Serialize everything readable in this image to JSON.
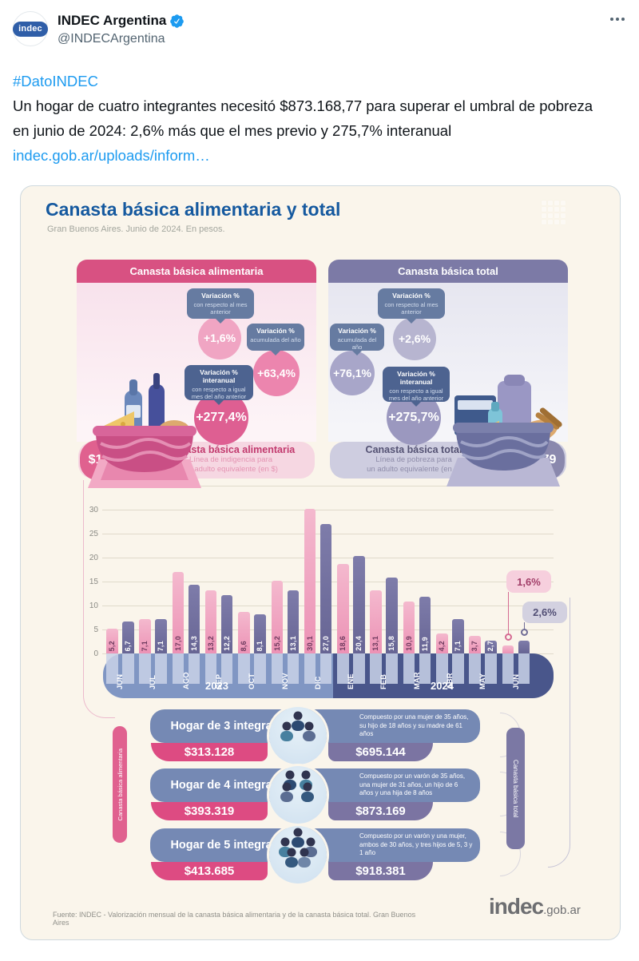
{
  "colors": {
    "link": "#1d9bf0",
    "title_blue": "#15599f",
    "pink": "#d85182",
    "purple": "#7c7aa6",
    "band_2023": "#8096c3",
    "band_2024": "#49568b"
  },
  "tweet": {
    "name": "INDEC Argentina",
    "handle": "@INDECArgentina",
    "avatar_text": "indec",
    "hashtag": "#DatoINDEC",
    "body": "Un hogar de cuatro integrantes necesitó $873.168,77 para superar el umbral de pobreza en junio de 2024: 2,6% más que el mes previo y 275,7% interanual ",
    "link_text": "indec.gob.ar/uploads/inform…"
  },
  "infographic": {
    "title": "Canasta básica alimentaria y total",
    "subtitle": "Gran Buenos Aires. Junio de 2024. En pesos.",
    "panels": [
      {
        "header": "Canasta básica alimentaria",
        "callouts": [
          {
            "title": "Variación %",
            "subtitle": "con respecto al mes anterior",
            "value": "+1,6%"
          },
          {
            "title": "Variación %",
            "subtitle": "acumulada del año",
            "value": "+63,4%"
          },
          {
            "title": "Variación % interanual",
            "subtitle": "con respecto a igual mes del año anterior",
            "value": "+277,4%"
          }
        ],
        "amount": "$127.288",
        "footer_title": "Canasta básica alimentaria",
        "footer_line1": "Línea de indigencia para",
        "footer_line2": "un adulto equivalente (en $)"
      },
      {
        "header": "Canasta básica total",
        "callouts": [
          {
            "title": "Variación %",
            "subtitle": "con respecto al mes anterior",
            "value": "+2,6%"
          },
          {
            "title": "Variación %",
            "subtitle": "acumulada del año",
            "value": "+76,1%"
          },
          {
            "title": "Variación % interanual",
            "subtitle": "con respecto a igual mes del año anterior",
            "value": "+275,7%"
          }
        ],
        "amount": "$282.579",
        "footer_title": "Canasta básica total",
        "footer_line1": "Línea de pobreza para",
        "footer_line2": "un adulto equivalente (en $)"
      }
    ],
    "ribbon_left": "Canasta básica alimentaria",
    "ribbon_right": "Canasta básica total",
    "households": [
      {
        "title": "Hogar de 3 integrantes",
        "members": 3,
        "amount_cba": "$313.128",
        "description": "Compuesto por una mujer de 35 años, su hijo de 18 años y su madre de 61 años",
        "amount_cbt": "$695.144"
      },
      {
        "title": "Hogar de 4 integrantes",
        "members": 4,
        "amount_cba": "$393.319",
        "description": "Compuesto por un varón de 35 años, una mujer de 31 años, un hijo de 6 años y una hija de 8 años",
        "amount_cbt": "$873.169"
      },
      {
        "title": "Hogar de 5 integrantes",
        "members": 5,
        "amount_cba": "$413.685",
        "description": "Compuesto por un varón y una mujer, ambos de 30 años, y tres hijos de 5, 3 y 1 año",
        "amount_cbt": "$918.381"
      }
    ],
    "source": "Fuente: INDEC - Valorización mensual de la canasta básica alimentaria y de la canasta básica total. Gran Buenos Aires",
    "logo_text": "indec",
    "logo_suffix": ".gob.ar"
  },
  "chart_data": {
    "type": "bar",
    "categories": [
      "JUN",
      "JUL",
      "AGO",
      "SEP",
      "OCT",
      "NOV",
      "DIC",
      "ENE",
      "FEB",
      "MAR",
      "ABR",
      "MAY",
      "JUN"
    ],
    "series": [
      {
        "name": "Canasta básica alimentaria",
        "color": "#efa6c2",
        "values": [
          5.2,
          7.1,
          17.0,
          13.2,
          8.6,
          15.2,
          30.1,
          18.6,
          13.1,
          10.9,
          4.2,
          3.7,
          1.6
        ],
        "labels": [
          "5,2",
          "7,1",
          "17,0",
          "13,2",
          "8,6",
          "15,2",
          "30,1",
          "18,6",
          "13,1",
          "10,9",
          "4,2",
          "3,7"
        ]
      },
      {
        "name": "Canasta básica total",
        "color": "#716f9d",
        "values": [
          6.7,
          7.1,
          14.3,
          12.2,
          8.1,
          13.1,
          27.0,
          20.4,
          15.8,
          11.9,
          7.1,
          2.7,
          2.6
        ],
        "labels": [
          "6,7",
          "7,1",
          "14,3",
          "12,2",
          "8,1",
          "13,1",
          "27,0",
          "20,4",
          "15,8",
          "11,9",
          "7,1",
          "2,7"
        ]
      }
    ],
    "ylim": [
      0,
      35
    ],
    "yticks": [
      0,
      5,
      10,
      15,
      20,
      25,
      30,
      35
    ],
    "grid": true,
    "year_groups": [
      {
        "label": "2023",
        "months": 7
      },
      {
        "label": "2024",
        "months": 6
      }
    ],
    "end_callouts": [
      {
        "series": "Canasta básica alimentaria",
        "label": "1,6%"
      },
      {
        "series": "Canasta básica total",
        "label": "2,6%"
      }
    ]
  }
}
